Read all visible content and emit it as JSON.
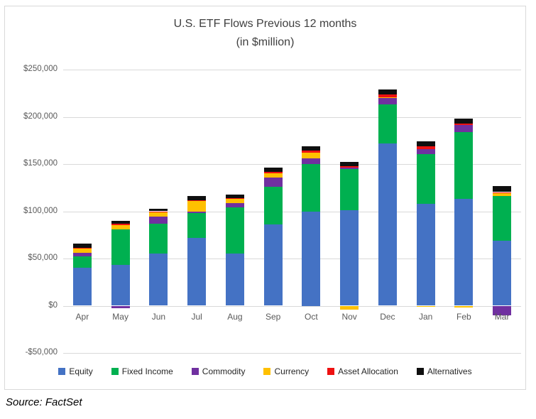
{
  "page": {
    "source_note": "Source: FactSet"
  },
  "chart_data": {
    "type": "bar",
    "stacked": true,
    "title": "U.S. ETF Flows Previous 12 months",
    "subtitle": "(in $million)",
    "categories": [
      "Apr",
      "May",
      "Jun",
      "Jul",
      "Aug",
      "Sep",
      "Oct",
      "Nov",
      "Dec",
      "Jan",
      "Feb",
      "Mar"
    ],
    "series": [
      {
        "name": "Equity",
        "color": "#4472c4",
        "values": [
          40000,
          43000,
          55000,
          72000,
          55000,
          86000,
          100000,
          101000,
          172000,
          108000,
          113000,
          69000
        ]
      },
      {
        "name": "Fixed Income",
        "color": "#00b050",
        "values": [
          12000,
          38000,
          32000,
          26000,
          49000,
          40000,
          50000,
          44000,
          41000,
          52500,
          71000,
          47000
        ]
      },
      {
        "name": "Commodity",
        "color": "#7030a0",
        "values": [
          4000,
          -2500,
          7000,
          1500,
          4500,
          10000,
          6000,
          1500,
          7500,
          5300,
          7500,
          -10000
        ]
      },
      {
        "name": "Currency",
        "color": "#ffc000",
        "values": [
          4500,
          4500,
          5000,
          12000,
          4500,
          4500,
          6000,
          -4000,
          500,
          -1500,
          -2000,
          3300
        ]
      },
      {
        "name": "Asset Allocation",
        "color": "#ee1111",
        "values": [
          1000,
          1500,
          1000,
          500,
          1000,
          1500,
          2000,
          1500,
          3000,
          3000,
          1000,
          1000
        ]
      },
      {
        "name": "Alternatives",
        "color": "#0f0f0f",
        "values": [
          4500,
          3000,
          3000,
          4500,
          4000,
          4000,
          4500,
          4000,
          5000,
          5000,
          5500,
          6500
        ]
      }
    ],
    "ylim": [
      -50000,
      250000
    ],
    "ytick_interval": 50000,
    "ytick_labels": [
      "$250,000",
      "$200,000",
      "$150,000",
      "$100,000",
      "$50,000",
      "$0",
      "-$50,000"
    ],
    "grid": true,
    "legend_position": "bottom",
    "gridline_color": "#d9d9d9",
    "axis_label_color": "#595959",
    "title_color": "#3f3f3f"
  }
}
